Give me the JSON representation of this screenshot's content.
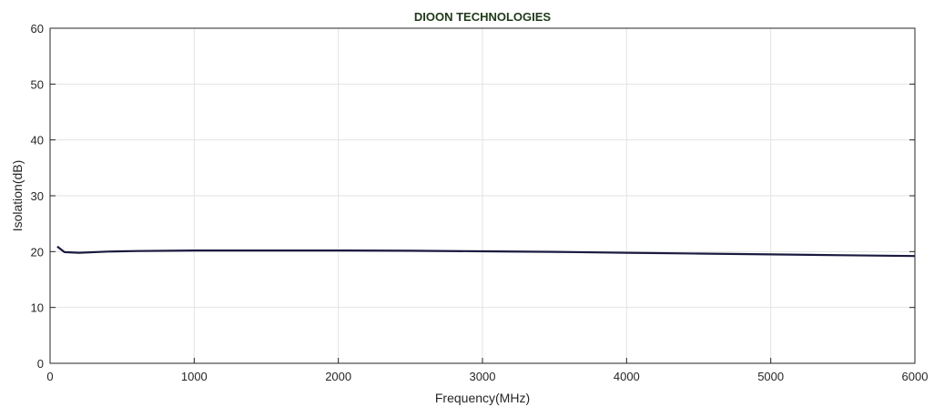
{
  "chart_data": {
    "type": "line",
    "title": "DIOON TECHNOLOGIES",
    "xlabel": "Frequency(MHz)",
    "ylabel": "Isolation(dB)",
    "xlim": [
      0,
      6000
    ],
    "ylim": [
      0,
      60
    ],
    "xticks": [
      0,
      1000,
      2000,
      3000,
      4000,
      5000,
      6000
    ],
    "yticks": [
      0,
      10,
      20,
      30,
      40,
      50,
      60
    ],
    "grid": true,
    "legend": "none",
    "colors": {
      "line": "#1b1a40",
      "title": "#1f3a1a",
      "grid": "#e3e3e3",
      "axes": "#262626"
    },
    "series": [
      {
        "x": [
          50,
          100,
          200,
          400,
          600,
          1000,
          1500,
          2000,
          2500,
          3000,
          3500,
          4000,
          4500,
          5000,
          5500,
          6000
        ],
        "y": [
          20.9,
          19.9,
          19.8,
          20.0,
          20.1,
          20.2,
          20.2,
          20.2,
          20.15,
          20.05,
          19.95,
          19.8,
          19.65,
          19.5,
          19.35,
          19.2
        ]
      }
    ]
  }
}
